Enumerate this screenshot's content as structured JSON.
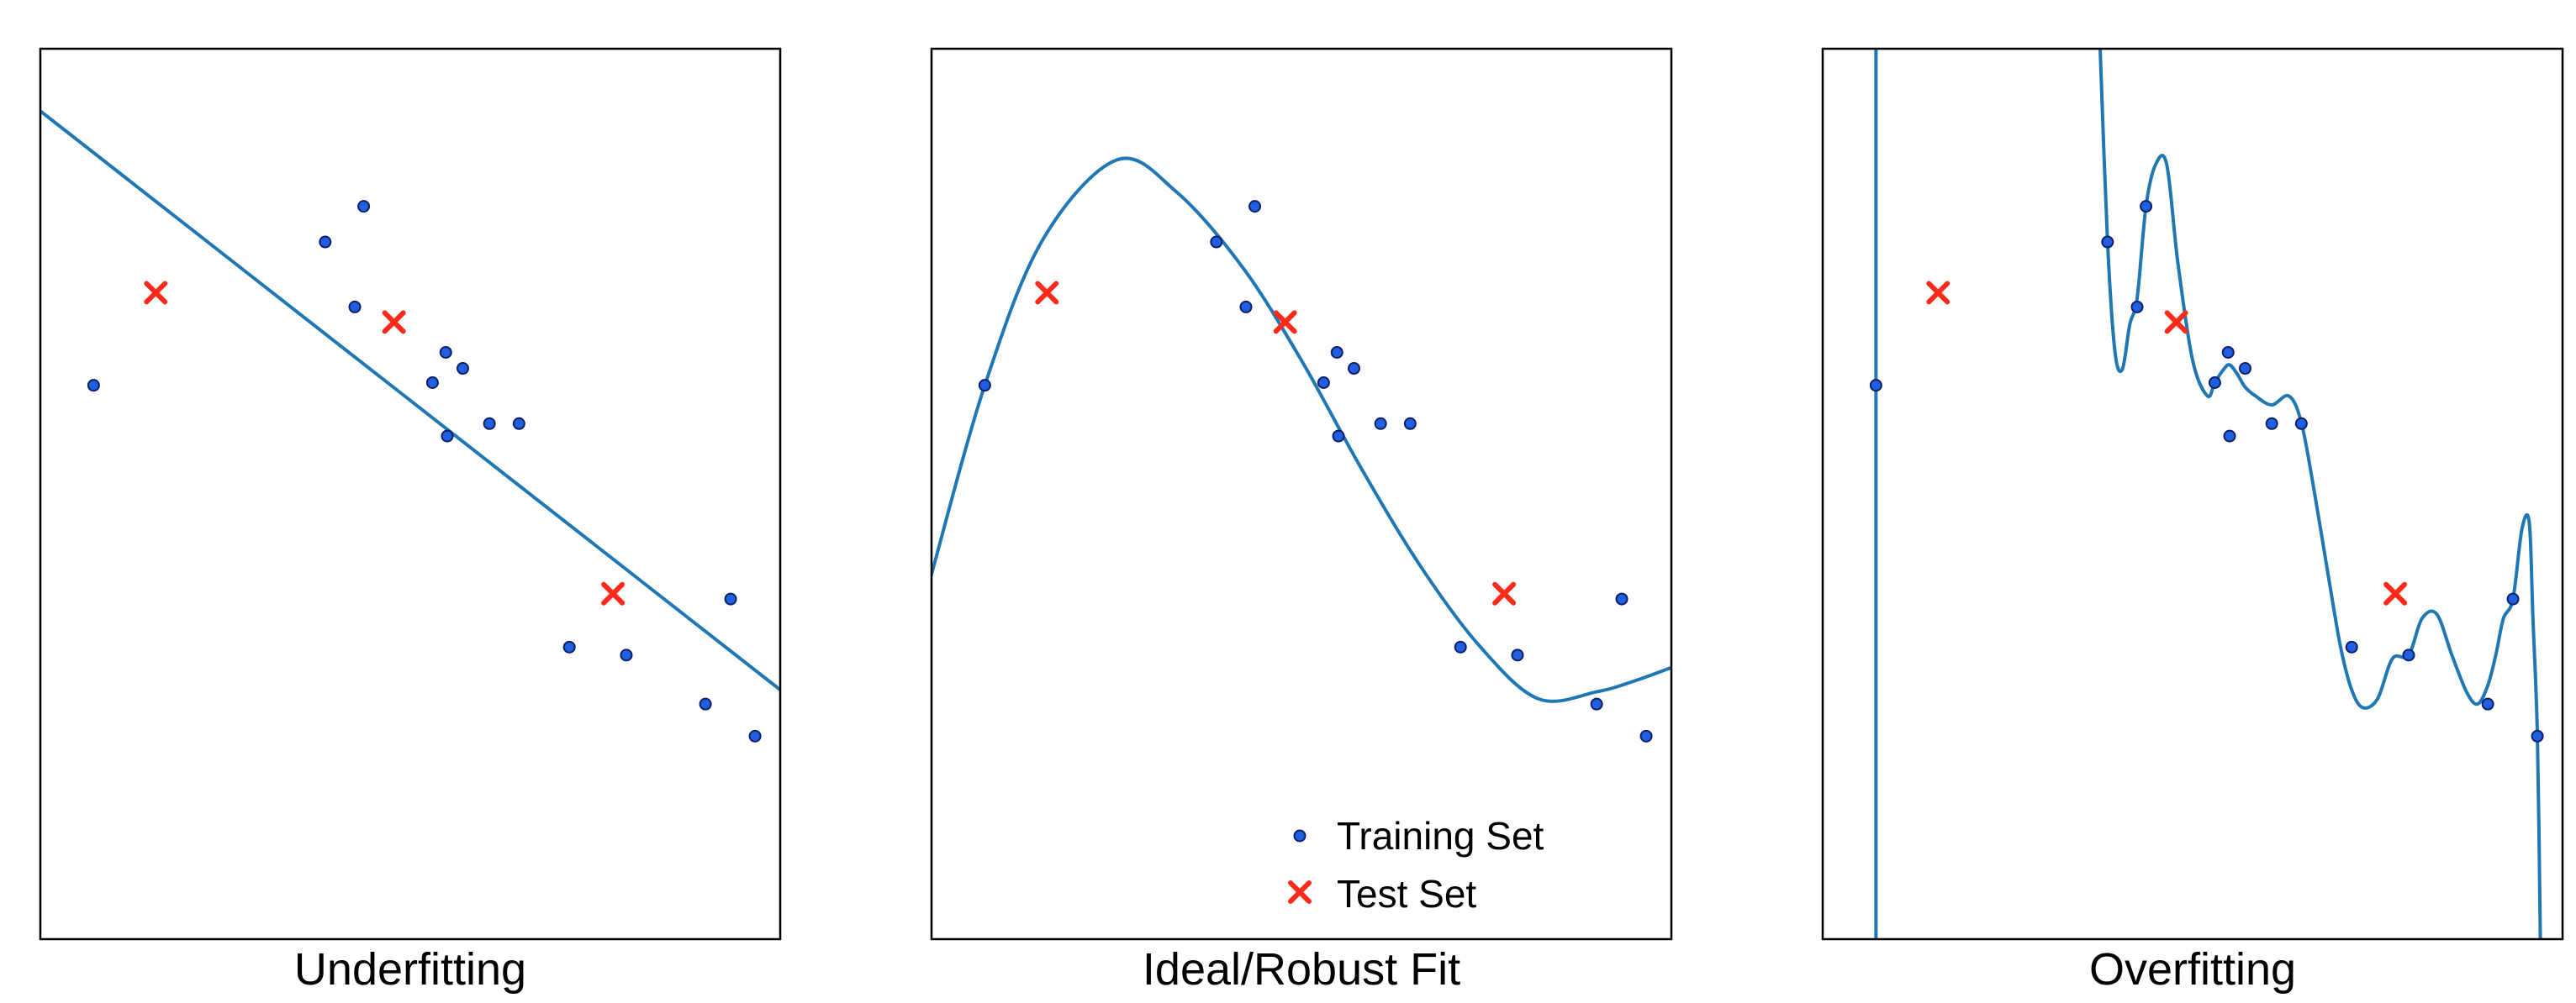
{
  "colors": {
    "fit_line": "#1f77b4",
    "train_fill": "#1f5fe0",
    "train_edge": "#0b1f66",
    "test": "#ff2a1a",
    "frame": "#000000"
  },
  "chart_data": [
    {
      "type": "scatter",
      "caption": "Underfitting",
      "xlim": [
        0,
        10
      ],
      "ylim": [
        0,
        10
      ],
      "grid": false,
      "fit": {
        "kind": "linear",
        "x": [
          0,
          10
        ],
        "y": [
          9.3,
          2.8
        ]
      },
      "training_set": {
        "x": [
          0.72,
          3.85,
          4.25,
          4.37,
          5.3,
          5.48,
          5.5,
          5.71,
          6.07,
          6.47,
          7.15,
          7.92,
          8.99,
          9.33,
          9.66
        ],
        "y": [
          6.22,
          7.83,
          7.1,
          8.23,
          6.25,
          6.59,
          5.65,
          6.41,
          5.79,
          5.79,
          3.28,
          3.19,
          2.64,
          3.82,
          2.28
        ]
      },
      "test_set": {
        "x": [
          1.56,
          4.78,
          7.74
        ],
        "y": [
          7.26,
          6.93,
          3.88
        ]
      }
    },
    {
      "type": "scatter",
      "caption": "Ideal/Robust Fit",
      "xlim": [
        0,
        10
      ],
      "ylim": [
        0,
        10
      ],
      "grid": false,
      "fit": {
        "kind": "curve",
        "x": [
          0,
          0.72,
          1.5,
          2.5,
          3.3,
          4.2,
          5.0,
          5.8,
          6.6,
          7.4,
          8.2,
          9.0,
          9.5,
          10.0
        ],
        "y": [
          4.1,
          6.22,
          7.85,
          8.75,
          8.4,
          7.55,
          6.5,
          5.3,
          4.2,
          3.3,
          2.7,
          2.78,
          2.9,
          3.05
        ]
      },
      "training_set": {
        "x": [
          0.72,
          3.85,
          4.25,
          4.37,
          5.3,
          5.48,
          5.5,
          5.71,
          6.07,
          6.47,
          7.15,
          7.92,
          8.99,
          9.33,
          9.66
        ],
        "y": [
          6.22,
          7.83,
          7.1,
          8.23,
          6.25,
          6.59,
          5.65,
          6.41,
          5.79,
          5.79,
          3.28,
          3.19,
          2.64,
          3.82,
          2.28
        ]
      },
      "test_set": {
        "x": [
          1.56,
          4.78,
          7.74
        ],
        "y": [
          7.26,
          6.93,
          3.88
        ]
      },
      "legend": {
        "position": "bottom-right",
        "entries": [
          {
            "series": "training_set",
            "label": "Training Set"
          },
          {
            "series": "test_set",
            "label": "Test Set"
          }
        ]
      }
    },
    {
      "type": "scatter",
      "caption": "Overfitting",
      "xlim": [
        0,
        10
      ],
      "ylim": [
        0,
        10
      ],
      "grid": false,
      "fit": {
        "kind": "curve",
        "segments": [
          {
            "x": [
              0.72,
              0.72
            ],
            "y": [
              10,
              0
            ]
          },
          {
            "x": [
              3.75,
              3.85,
              3.95,
              4.05,
              4.15,
              4.25,
              4.37,
              4.5,
              4.65,
              4.8,
              5.0,
              5.2,
              5.3,
              5.42,
              5.5,
              5.6,
              5.71,
              5.85,
              6.07,
              6.3,
              6.47,
              6.65,
              6.85,
              7.0,
              7.15,
              7.3,
              7.5,
              7.7,
              7.92,
              8.1,
              8.3,
              8.5,
              8.7,
              8.85,
              8.99,
              9.1,
              9.2,
              9.33,
              9.45,
              9.55,
              9.6,
              9.66,
              9.7
            ],
            "y": [
              10.0,
              7.83,
              6.6,
              6.4,
              6.9,
              7.2,
              8.23,
              8.7,
              8.7,
              7.6,
              6.5,
              6.1,
              6.25,
              6.4,
              6.45,
              6.35,
              6.2,
              6.1,
              6.0,
              6.1,
              5.8,
              5.0,
              4.0,
              3.28,
              2.8,
              2.6,
              2.7,
              3.15,
              3.19,
              3.6,
              3.65,
              3.2,
              2.78,
              2.64,
              2.85,
              3.2,
              3.6,
              3.82,
              4.6,
              4.68,
              3.6,
              2.28,
              0
            ]
          }
        ]
      },
      "training_set": {
        "x": [
          0.72,
          3.85,
          4.25,
          4.37,
          5.3,
          5.48,
          5.5,
          5.71,
          6.07,
          6.47,
          7.15,
          7.92,
          8.99,
          9.33,
          9.66
        ],
        "y": [
          6.22,
          7.83,
          7.1,
          8.23,
          6.25,
          6.59,
          5.65,
          6.41,
          5.79,
          5.79,
          3.28,
          3.19,
          2.64,
          3.82,
          2.28
        ]
      },
      "test_set": {
        "x": [
          1.56,
          4.78,
          7.74
        ],
        "y": [
          7.26,
          6.93,
          3.88
        ]
      }
    }
  ]
}
